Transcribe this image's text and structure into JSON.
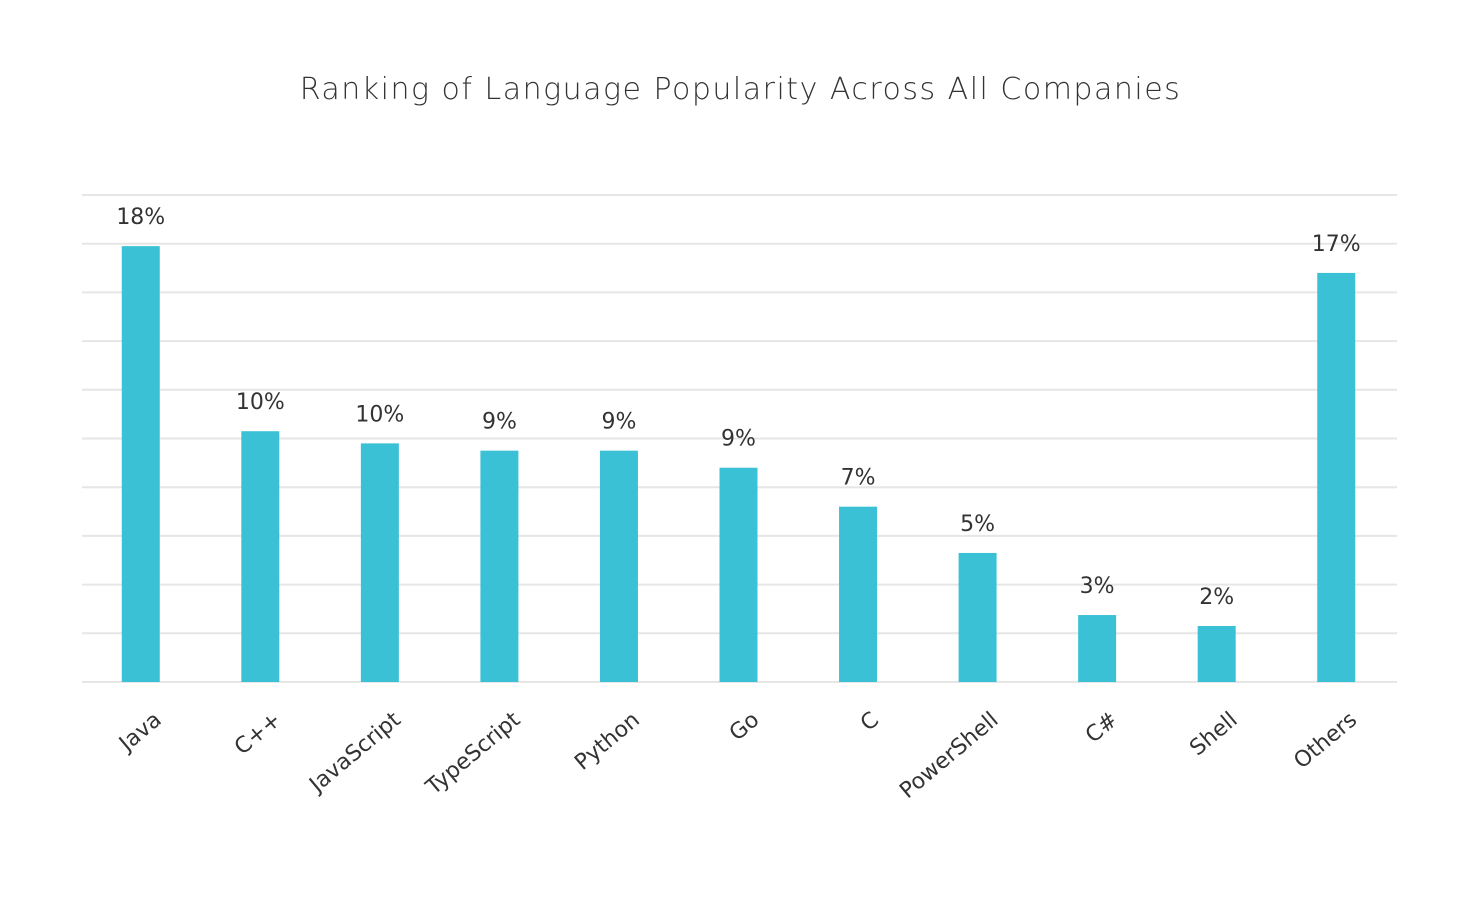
{
  "chart_data": {
    "type": "bar",
    "title": "Ranking of Language Popularity Across All Companies",
    "xlabel": "",
    "ylabel": "",
    "categories": [
      "Java",
      "C++",
      "JavaScript",
      "TypeScript",
      "Python",
      "Go",
      "C",
      "PowerShell",
      "C#",
      "Shell",
      "Others"
    ],
    "values": [
      17.9,
      10.3,
      9.8,
      9.5,
      9.5,
      8.8,
      7.2,
      5.3,
      2.75,
      2.3,
      16.8
    ],
    "data_labels": [
      "18%",
      "10%",
      "10%",
      "9%",
      "9%",
      "9%",
      "7%",
      "5%",
      "3%",
      "2%",
      "17%"
    ],
    "ylim": [
      0,
      20
    ],
    "grid": true,
    "grid_step": 2,
    "y_tick_labels_shown": false,
    "bar_color": "#3bc1d6",
    "grid_color": "#e6e6e6"
  }
}
